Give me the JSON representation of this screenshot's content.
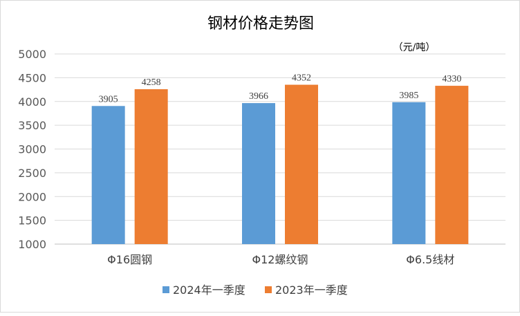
{
  "chart_data": {
    "type": "bar",
    "title": "钢材价格走势图",
    "unit": "（元/吨）",
    "categories": [
      "Φ16圆钢",
      "Φ12螺纹钢",
      "Φ6.5线材"
    ],
    "series": [
      {
        "name": "2024年一季度",
        "color": "#5b9bd5",
        "values": [
          3905,
          3966,
          3985
        ]
      },
      {
        "name": "2023年一季度",
        "color": "#ed7d31",
        "values": [
          4258,
          4352,
          4330
        ]
      }
    ],
    "yticks": [
      1000,
      1500,
      2000,
      2500,
      3000,
      3500,
      4000,
      4500,
      5000
    ],
    "ylim": [
      1000,
      5000
    ],
    "grid": true,
    "legend_position": "bottom"
  }
}
